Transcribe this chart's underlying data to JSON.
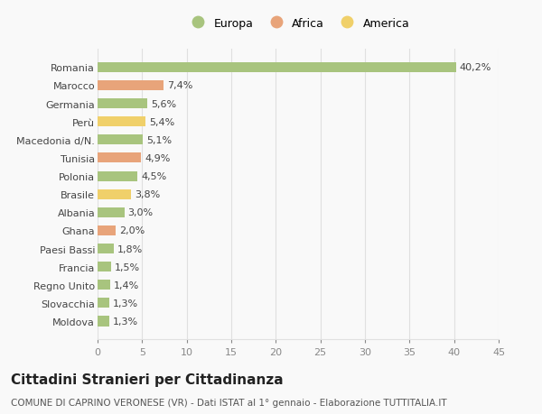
{
  "categories": [
    "Romania",
    "Marocco",
    "Germania",
    "Perù",
    "Macedonia d/N.",
    "Tunisia",
    "Polonia",
    "Brasile",
    "Albania",
    "Ghana",
    "Paesi Bassi",
    "Francia",
    "Regno Unito",
    "Slovacchia",
    "Moldova"
  ],
  "values": [
    40.2,
    7.4,
    5.6,
    5.4,
    5.1,
    4.9,
    4.5,
    3.8,
    3.0,
    2.0,
    1.8,
    1.5,
    1.4,
    1.3,
    1.3
  ],
  "bar_colors": [
    "#a8c47e",
    "#e8a47a",
    "#a8c47e",
    "#f0d06a",
    "#a8c47e",
    "#e8a47a",
    "#a8c47e",
    "#f0d06a",
    "#a8c47e",
    "#e8a47a",
    "#a8c47e",
    "#a8c47e",
    "#a8c47e",
    "#a8c47e",
    "#a8c47e"
  ],
  "legend_labels": [
    "Europa",
    "Africa",
    "America"
  ],
  "legend_colors": [
    "#a8c47e",
    "#e8a47a",
    "#f0d06a"
  ],
  "title": "Cittadini Stranieri per Cittadinanza",
  "subtitle": "COMUNE DI CAPRINO VERONESE (VR) - Dati ISTAT al 1° gennaio - Elaborazione TUTTITALIA.IT",
  "xlim": [
    0,
    45
  ],
  "xticks": [
    0,
    5,
    10,
    15,
    20,
    25,
    30,
    35,
    40,
    45
  ],
  "background_color": "#f9f9f9",
  "grid_color": "#e0e0e0",
  "bar_height": 0.55,
  "value_fontsize": 8,
  "ytick_fontsize": 8,
  "xtick_fontsize": 8,
  "title_fontsize": 11,
  "subtitle_fontsize": 7.5,
  "legend_fontsize": 9
}
